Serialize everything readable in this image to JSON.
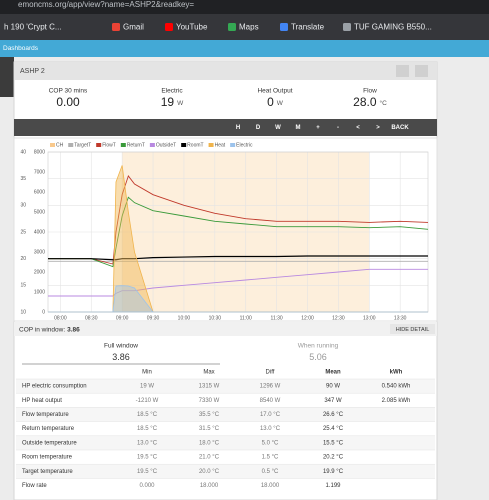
{
  "browser": {
    "url": "emoncms.org/app/view?name=ASHP2&readkey=",
    "bookmarks": [
      "h 190 'Crypt C...",
      "Gmail",
      "YouTube",
      "Maps",
      "Translate",
      "TUF GAMING B550..."
    ]
  },
  "nav": {
    "title": "Dashboards"
  },
  "panel": {
    "title": "ASHP 2"
  },
  "stats": [
    {
      "label": "COP 30 mins",
      "value": "0.00"
    },
    {
      "label": "Electric",
      "value": "19",
      "unit": "W"
    },
    {
      "label": "Heat Output",
      "value": "0",
      "unit": "W"
    },
    {
      "label": "Flow",
      "value": "28.0",
      "unit": "°C"
    }
  ],
  "toolbar": [
    "H",
    "D",
    "W",
    "M",
    "+",
    "-",
    "<",
    ">",
    "BACK"
  ],
  "chart": {
    "type": "line",
    "x": [
      7.8,
      8.5,
      8.85,
      8.9,
      9.0,
      9.1,
      9.2,
      9.5,
      10.0,
      10.5,
      11.0,
      11.5,
      12.0,
      12.5,
      13.0,
      13.5,
      13.95
    ],
    "xlim": [
      7.8,
      13.95
    ],
    "xticks": [
      {
        "value": 8.0,
        "label": "08:00"
      },
      {
        "value": 8.5,
        "label": "08:30"
      },
      {
        "value": 9.0,
        "label": "09:00"
      },
      {
        "value": 9.5,
        "label": "09:30"
      },
      {
        "value": 10.0,
        "label": "10:00"
      },
      {
        "value": 10.5,
        "label": "10:30"
      },
      {
        "value": 11.0,
        "label": "11:00"
      },
      {
        "value": 11.5,
        "label": "11:30"
      },
      {
        "value": 12.0,
        "label": "12:00"
      },
      {
        "value": 12.5,
        "label": "12:30"
      },
      {
        "value": 13.0,
        "label": "13:00"
      },
      {
        "value": 13.5,
        "label": "13:30"
      }
    ],
    "ylim": [
      10,
      40
    ],
    "yticks": [
      10,
      15,
      20,
      25,
      30,
      35,
      40
    ],
    "y2lim": [
      0,
      8000
    ],
    "y2ticks": [
      0,
      1000,
      2000,
      3000,
      4000,
      5000,
      6000,
      7000,
      8000
    ],
    "grid": true,
    "series": [
      {
        "name": "CH",
        "color": "#f9c98c",
        "band": true,
        "values": [
          0,
          0,
          0,
          0,
          1,
          1,
          1,
          1,
          1,
          1,
          1,
          1,
          1,
          1,
          0,
          0,
          0
        ]
      },
      {
        "name": "TargetT",
        "color": "#b0b0b0",
        "values": [
          19.5,
          19.5,
          19.5,
          19.5,
          19.5,
          19.5,
          19.5,
          19.5,
          19.5,
          19.5,
          19.5,
          19.5,
          19.5,
          19.5,
          19.5,
          19.5,
          19.5
        ]
      },
      {
        "name": "FlowT",
        "color": "#c0392b",
        "values": [
          20,
          20,
          19,
          25,
          32,
          35.5,
          34,
          32,
          30,
          28.5,
          27.5,
          27,
          27,
          27,
          26.8,
          27,
          26.8
        ]
      },
      {
        "name": "ReturnT",
        "color": "#3a9a3a",
        "values": [
          20,
          20,
          18.5,
          22,
          28,
          31.5,
          30.5,
          29,
          28,
          27,
          26.5,
          26,
          26,
          26,
          25.8,
          26,
          25.5
        ]
      },
      {
        "name": "OutsideT",
        "color": "#b889e0",
        "values": [
          13,
          13,
          13,
          13.5,
          14,
          14,
          14,
          14.5,
          15,
          15.5,
          16,
          16.5,
          17,
          17.5,
          18,
          18,
          18
        ]
      },
      {
        "name": "RoomT",
        "color": "#000000",
        "values": [
          20,
          20,
          19.8,
          19.8,
          20,
          20,
          20,
          20.2,
          20.3,
          20.4,
          20.4,
          20.4,
          20.5,
          20.5,
          20.5,
          20.5,
          20.5
        ]
      },
      {
        "name": "Heat",
        "color": "#f0b44c",
        "axis": "y2",
        "values": [
          0,
          0,
          0,
          6500,
          7330,
          5000,
          3000,
          0,
          0,
          0,
          0,
          0,
          0,
          0,
          0,
          0,
          0
        ]
      },
      {
        "name": "Electric",
        "color": "#9cc3ec",
        "axis": "y2",
        "values": [
          0,
          0,
          0,
          1300,
          1315,
          1300,
          1200,
          0,
          0,
          0,
          0,
          0,
          0,
          0,
          0,
          0,
          0
        ]
      }
    ]
  },
  "cop_window": {
    "label": "COP in window:",
    "value": "3.86",
    "button": "HIDE DETAIL"
  },
  "summary": [
    {
      "label": "Full window",
      "value": "3.86"
    },
    {
      "label": "When running",
      "value": "5.06"
    }
  ],
  "table": {
    "header": [
      "Min",
      "Max",
      "Diff",
      "Mean",
      "kWh"
    ],
    "rows": [
      [
        "HP electric consumption",
        "19 W",
        "1315 W",
        "1296 W",
        "90 W",
        "0.540 kWh"
      ],
      [
        "HP heat output",
        "-1210 W",
        "7330 W",
        "8540 W",
        "347 W",
        "2.085 kWh"
      ],
      [
        "Flow temperature",
        "18.5 °C",
        "35.5 °C",
        "17.0 °C",
        "26.6 °C"
      ],
      [
        "Return temperature",
        "18.5 °C",
        "31.5 °C",
        "13.0 °C",
        "25.4 °C"
      ],
      [
        "Outside temperature",
        "13.0 °C",
        "18.0 °C",
        "5.0 °C",
        "15.5 °C"
      ],
      [
        "Room temperature",
        "19.5 °C",
        "21.0 °C",
        "1.5 °C",
        "20.2 °C"
      ],
      [
        "Target temperature",
        "19.5 °C",
        "20.0 °C",
        "0.5 °C",
        "19.9 °C"
      ],
      [
        "Flow rate",
        "0.000",
        "18.000",
        "18.000",
        "1.199"
      ]
    ]
  }
}
